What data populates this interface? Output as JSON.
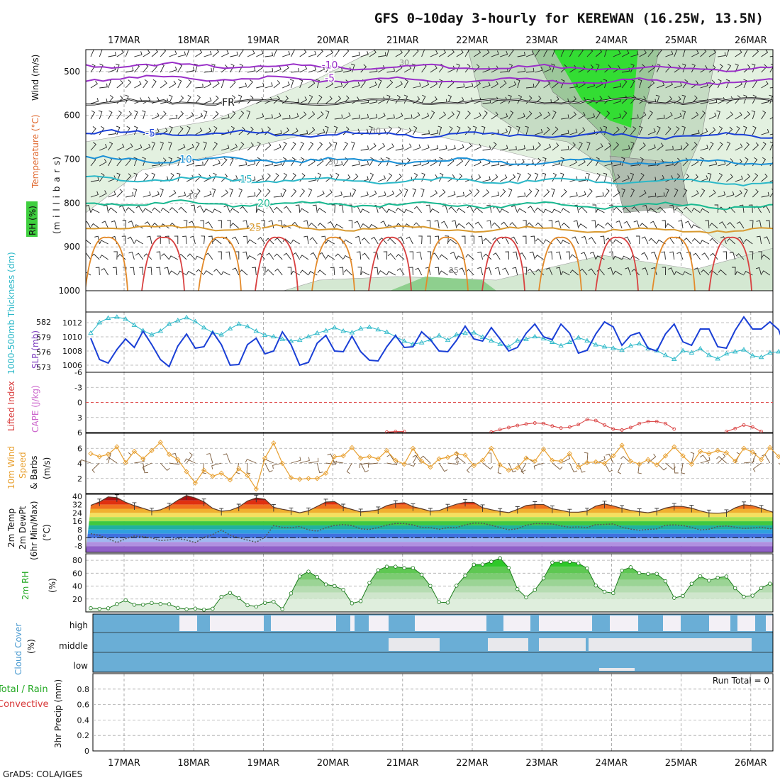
{
  "title": "GFS 0~10day 3-hourly for KEREWAN (16.25W, 13.5N)",
  "footer": "GrADS: COLA/IGES",
  "dates": [
    "17MAR",
    "18MAR",
    "19MAR",
    "20MAR",
    "21MAR",
    "22MAR",
    "23MAR",
    "24MAR",
    "25MAR",
    "26MAR"
  ],
  "colors": {
    "slp": "#1a3fd6",
    "thickness": "#2bb8c8",
    "lifted": "#d83a3a",
    "cape": "#cc66cc",
    "wind10": "#e8a030",
    "rh_green": "#22c822",
    "cloud": "#6aaed6",
    "cloud_clear": "#f3f0f6"
  },
  "chart_data": [
    {
      "type": "contour",
      "panel": "upper-air",
      "ylabel_parts": [
        "RH (%)",
        "Temperature (°C)",
        "Wind (m/s)"
      ],
      "ylabel2": "(m i l l i b a r s)",
      "yticks": [
        500,
        600,
        700,
        800,
        900,
        1000
      ],
      "ylim": [
        450,
        1000
      ],
      "isotherms": [
        {
          "label": "-10",
          "level": 485
        },
        {
          "label": "-5",
          "level": 515
        },
        {
          "label": "FR",
          "level": 570
        },
        {
          "label": "-5",
          "level": 640
        },
        {
          "label": "10",
          "level": 700
        },
        {
          "label": "15",
          "level": 745
        },
        {
          "label": "20",
          "level": 800
        },
        {
          "label": "25",
          "level": 855
        }
      ],
      "rh_labels": [
        "30",
        "30",
        "30",
        "10",
        "25"
      ]
    },
    {
      "type": "line",
      "panel": "slp-thickness",
      "ylabel_left": "1000-500mb Thickness (dm)",
      "ylabel_right": "SLP (mb)",
      "yticks_left": [
        573,
        576,
        579,
        582
      ],
      "yticks_right": [
        1006,
        1008,
        1010,
        1012
      ],
      "series": [
        {
          "name": "SLP (mb)",
          "values": [
            1009.8,
            1006.8,
            1006.3,
            1008.2,
            1009.7,
            1008.5,
            1010.8,
            1008.9,
            1006.8,
            1005.8,
            1008.7,
            1010.4,
            1008.4,
            1008.6,
            1010.7,
            1008.9,
            1006.0,
            1006.1,
            1008.9,
            1009.8,
            1007.6,
            1008.0,
            1010.7,
            1008.9,
            1006.0,
            1006.4,
            1009.1,
            1010.2,
            1008.0,
            1007.9,
            1010.1,
            1007.9,
            1006.7,
            1006.6,
            1008.6,
            1010.2,
            1008.5,
            1008.6,
            1010.7,
            1009.6,
            1008.0,
            1007.9,
            1009.5,
            1011.5,
            1009.7,
            1009.4,
            1011.3,
            1009.7,
            1008.0,
            1008.5,
            1010.5,
            1011.8,
            1010.0,
            1009.6,
            1011.8,
            1010.5,
            1007.7,
            1008.1,
            1010.4,
            1012.1,
            1011.4,
            1008.8,
            1010.2,
            1010.6,
            1008.4,
            1008.0,
            1010.4,
            1011.8,
            1009.3,
            1008.8,
            1011.1,
            1011.1,
            1008.6,
            1008.4,
            1010.9,
            1012.8,
            1011.1,
            1011.1,
            1012.1,
            1011.0,
            1007.6,
            1007.4,
            1008.9,
            1008.9
          ]
        },
        {
          "name": "1000-500mb Thickness (dm)",
          "values": [
            579.8,
            581.9,
            582.8,
            583.0,
            582.6,
            581.4,
            580.3,
            579.5,
            580.2,
            581.6,
            582.3,
            582.9,
            582.1,
            580.9,
            579.9,
            579.5,
            580.7,
            581.6,
            581.1,
            580.2,
            579.4,
            579.1,
            578.6,
            578.2,
            578.4,
            579.1,
            579.8,
            580.3,
            580.9,
            580.2,
            579.9,
            580.7,
            581.0,
            580.5,
            580.0,
            579.1,
            578.2,
            577.6,
            577.9,
            578.5,
            579.3,
            578.4,
            579.5,
            579.8,
            579.9,
            579.0,
            578.3,
            577.6,
            577.1,
            578.3,
            578.6,
            579.1,
            578.7,
            578.0,
            577.3,
            578.0,
            578.9,
            578.3,
            577.5,
            577.1,
            576.8,
            576.4,
            577.3,
            577.7,
            576.7,
            576.3,
            575.4,
            574.6,
            576.3,
            575.9,
            576.7,
            575.4,
            574.7,
            575.7,
            576.1,
            576.5,
            575.3,
            575.0,
            575.9,
            576.1,
            575.1,
            575.9,
            575.8,
            575.2
          ]
        }
      ]
    },
    {
      "type": "line",
      "panel": "stability",
      "ylabel_left": "Lifted Index",
      "ylabel_right": "CAPE (J/kg)",
      "yticks": [
        "-6",
        "-3",
        "0",
        "3",
        "6"
      ],
      "series": [
        {
          "name": "Lifted Index",
          "values": [
            null,
            null,
            null,
            null,
            null,
            null,
            null,
            null,
            null,
            null,
            null,
            null,
            null,
            null,
            null,
            null,
            null,
            null,
            null,
            null,
            null,
            null,
            null,
            null,
            null,
            null,
            null,
            null,
            null,
            null,
            null,
            null,
            null,
            null,
            5.9,
            5.8,
            5.8,
            null,
            null,
            null,
            null,
            null,
            null,
            null,
            null,
            null,
            5.9,
            5.4,
            5.0,
            4.6,
            4.3,
            4.1,
            4.2,
            4.7,
            5.1,
            4.9,
            4.4,
            3.4,
            3.6,
            4.5,
            5.3,
            5.5,
            5.0,
            4.2,
            3.8,
            3.8,
            4.2,
            5.3,
            null,
            null,
            null,
            null,
            null,
            5.8,
            5.2,
            4.5,
            4.9,
            5.8,
            null,
            null,
            null,
            null,
            5.8,
            4.6
          ]
        }
      ]
    },
    {
      "type": "line",
      "panel": "wind10m",
      "ylabel_parts": [
        "10m Wind",
        "Speed",
        "& Barbs",
        "(m/s)"
      ],
      "yticks": [
        2,
        4,
        6
      ],
      "ylim": [
        0,
        8
      ],
      "series": [
        {
          "name": "Speed",
          "values": [
            5.3,
            4.9,
            5.2,
            6.2,
            4.1,
            5.6,
            4.6,
            5.7,
            6.8,
            5.2,
            4.5,
            2.9,
            1.4,
            3.1,
            2.3,
            2.7,
            1.8,
            3.3,
            2.4,
            0.6,
            4.7,
            6.7,
            4.0,
            2.1,
            1.9,
            2.0,
            2.0,
            2.7,
            4.9,
            5.0,
            6.1,
            4.7,
            4.9,
            4.6,
            5.7,
            4.4,
            3.9,
            6.0,
            4.3,
            3.5,
            4.6,
            4.8,
            5.3,
            5.1,
            3.7,
            4.4,
            6.0,
            3.8,
            3.1,
            3.4,
            4.7,
            4.3,
            5.9,
            4.4,
            4.3,
            5.3,
            3.5,
            4.1,
            4.2,
            4.0,
            5.0,
            6.4,
            4.3,
            3.9,
            4.5,
            3.8,
            5.0,
            6.2,
            5.0,
            3.9,
            5.6,
            5.3,
            5.7,
            5.4,
            4.3,
            6.0,
            5.5,
            4.5,
            6.1,
            4.9,
            4.8,
            5.3,
            4.8,
            5.1
          ]
        }
      ]
    },
    {
      "type": "area",
      "panel": "temperature",
      "ylabel_parts": [
        "2m Temp",
        "2m DewPt",
        "(6hr Min/Max)",
        "(°C)"
      ],
      "yticks": [
        -8,
        0,
        8,
        16,
        24,
        32,
        40
      ],
      "ylim": [
        -14,
        42
      ],
      "series": [
        {
          "name": "2m Temp",
          "values": [
            31.3,
            34.6,
            39.5,
            38.7,
            34.3,
            31.1,
            28.5,
            25.8,
            27.0,
            30.7,
            36.2,
            40.8,
            38.4,
            34.7,
            28.5,
            25.6,
            26.5,
            29.7,
            35.5,
            38.4,
            37.2,
            29.4,
            27.5,
            26.1,
            24.2,
            26.1,
            30.3,
            34.5,
            34.9,
            29.7,
            27.3,
            25.0,
            25.7,
            27.0,
            31.0,
            33.1,
            33.8,
            30.0,
            28.0,
            25.7,
            26.3,
            29.6,
            32.4,
            34.3,
            34.1,
            29.1,
            27.1,
            25.5,
            24.3,
            27.4,
            31.1,
            32.1,
            32.1,
            28.0,
            26.5,
            24.8,
            24.7,
            25.8,
            30.6,
            32.6,
            30.8,
            28.4,
            26.4,
            25.2,
            24.2,
            25.7,
            28.7,
            30.4,
            30.2,
            28.6,
            26.0,
            24.0,
            23.7,
            24.3,
            28.9,
            31.9,
            31.0,
            28.5,
            25.7,
            23.1,
            24.1,
            25.7,
            30.5,
            33.8
          ]
        },
        {
          "name": "2m DewPt",
          "values": [
            4.0,
            2.3,
            -0.9,
            -4.5,
            -0.9,
            1.7,
            1.3,
            -0.1,
            -2.6,
            -2.0,
            -0.7,
            -2.1,
            -4.6,
            0.5,
            3.2,
            7.5,
            2.6,
            0.1,
            -2.2,
            -4.2,
            0.5,
            11.8,
            10.1,
            9.7,
            11.0,
            7.7,
            6.4,
            9.7,
            12.0,
            12.8,
            11.9,
            8.7,
            8.1,
            10.0,
            12.3,
            13.8,
            13.8,
            12.4,
            10.0,
            10.0,
            8.2,
            10.0,
            9.8,
            12.4,
            14.3,
            14.1,
            12.1,
            9.9,
            7.8,
            8.8,
            12.1,
            13.8,
            13.6,
            13.4,
            11.5,
            10.2,
            10.5,
            9.8,
            12.7,
            13.0,
            13.4,
            10.2,
            8.5,
            7.3,
            8.1,
            8.6,
            12.1,
            12.5,
            11.9,
            10.1,
            7.6,
            8.3,
            10.9,
            11.5,
            10.3,
            9.1,
            9.6,
            10.3,
            8.7,
            10.7,
            11.8,
            11.7,
            11.0,
            10.1
          ]
        }
      ]
    },
    {
      "type": "area",
      "panel": "rh2m",
      "ylabel_parts": [
        "2m RH",
        "(%)"
      ],
      "yticks": [
        20,
        40,
        60,
        80
      ],
      "ylim": [
        0,
        90
      ],
      "series": [
        {
          "name": "2m RH",
          "values": [
            5.9,
            4.9,
            5.7,
            12.3,
            18.1,
            11.1,
            11.2,
            13.9,
            12.5,
            12.1,
            6.2,
            4.3,
            5.2,
            3.5,
            5.1,
            23.5,
            29.4,
            21.4,
            10.4,
            8.3,
            14.1,
            15.9,
            4.4,
            28.7,
            55.0,
            62.5,
            54.1,
            42.7,
            40.1,
            34.2,
            13.3,
            16.7,
            45.1,
            64.7,
            70.1,
            70.1,
            67.9,
            68.1,
            57.8,
            40.3,
            15.2,
            14.5,
            40.7,
            56.1,
            73.3,
            73.5,
            77.8,
            83.3,
            68.3,
            35.4,
            22.5,
            34.0,
            52.0,
            76.5,
            77.5,
            77.6,
            75.2,
            67.5,
            40.9,
            31.3,
            29.1,
            64.1,
            69.3,
            60.1,
            58.9,
            59.1,
            47.6,
            21.8,
            24.7,
            43.7,
            55.4,
            48.6,
            53.1,
            54.9,
            36.7,
            23.6,
            25.2,
            37.1,
            43.8,
            42.6,
            34.7,
            14.8,
            10.6,
            28.6
          ]
        }
      ]
    },
    {
      "type": "heatmap",
      "panel": "cloud",
      "ylabel_parts": [
        "Cloud Cover",
        "(%)"
      ],
      "rows": [
        "high",
        "middle",
        "low"
      ]
    },
    {
      "type": "bar",
      "panel": "precip",
      "ylabel_parts": [
        "3hr Precip (mm)",
        "Total / Rain",
        "Convective"
      ],
      "yticks": [
        "0",
        "0.2",
        "0.4",
        "0.6",
        "0.8"
      ],
      "ylim": [
        0,
        1
      ],
      "annotation": "Run Total = 0",
      "values": []
    }
  ]
}
